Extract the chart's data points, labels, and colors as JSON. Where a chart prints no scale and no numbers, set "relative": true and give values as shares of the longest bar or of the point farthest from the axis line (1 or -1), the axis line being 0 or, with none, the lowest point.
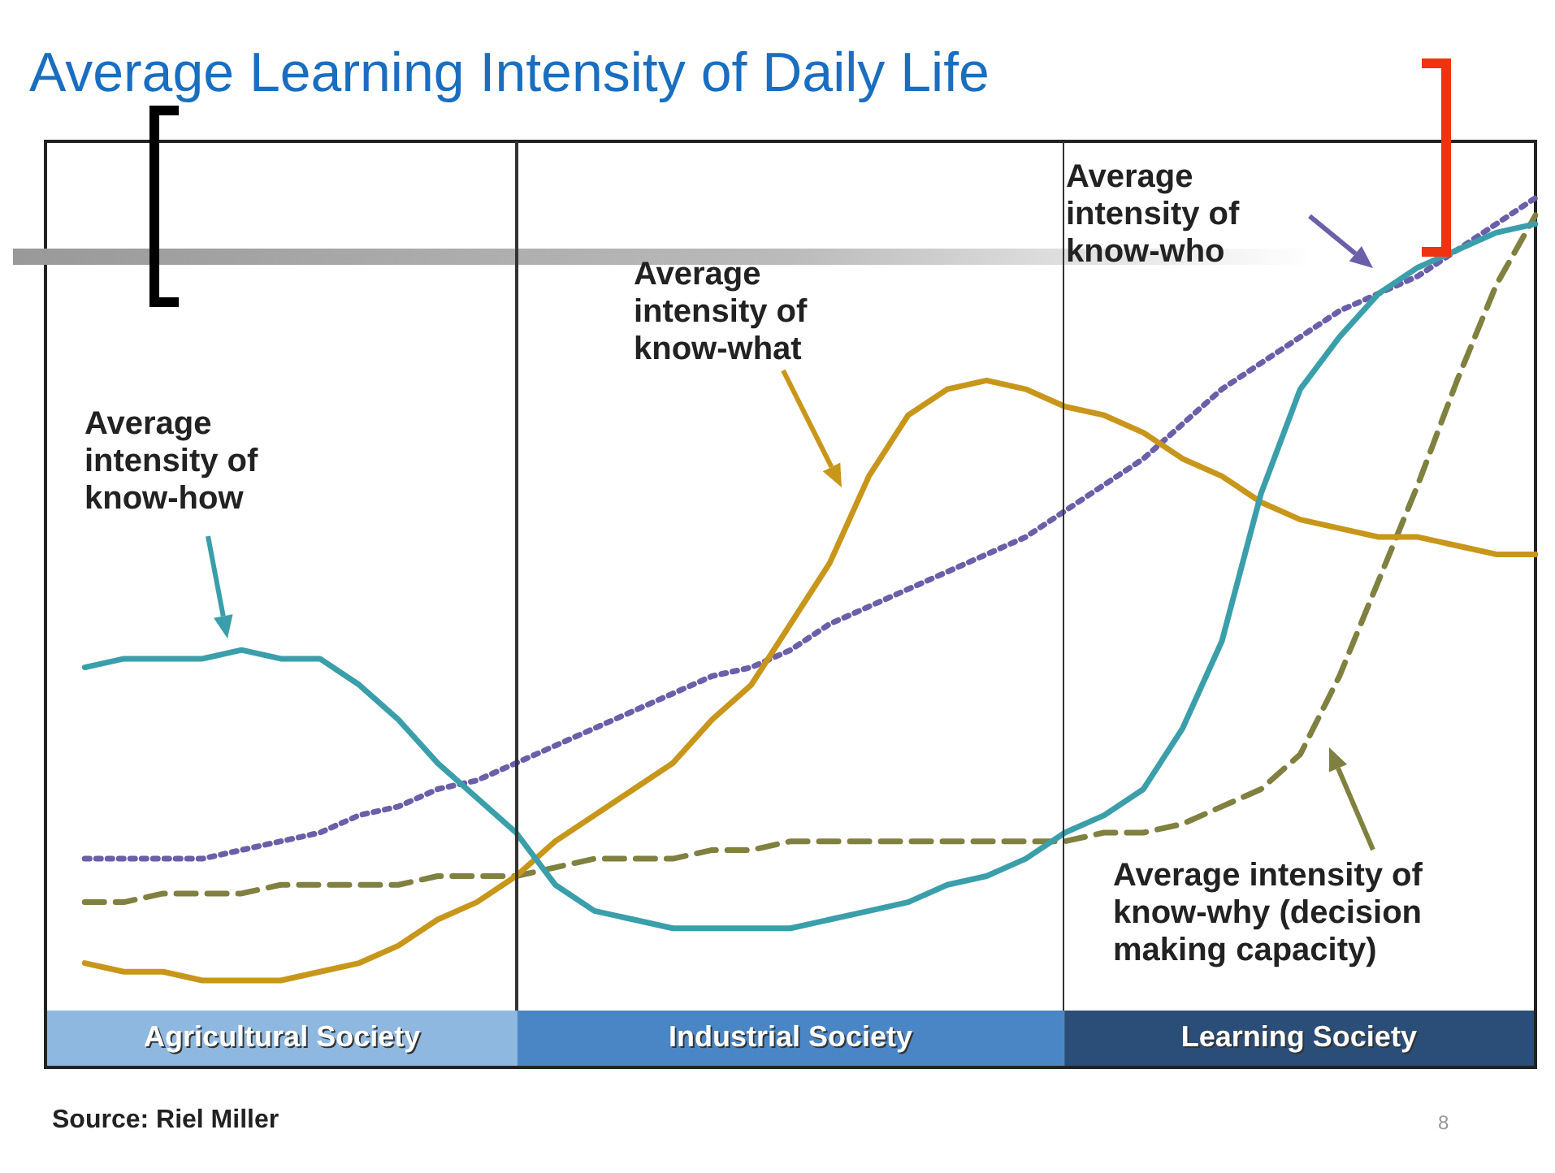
{
  "chart_data": [
    {
      "type": "line",
      "title": "Average Learning Intensity of Daily Life",
      "relative": true,
      "legend": false,
      "marker": "none",
      "categories": [
        null,
        null,
        null,
        null,
        null,
        null,
        null,
        null,
        null,
        null,
        null,
        null,
        null,
        null,
        null,
        null,
        null,
        null,
        null,
        null,
        null,
        null,
        null,
        null,
        null,
        null,
        null,
        null,
        null,
        null,
        null,
        null,
        null,
        null,
        null,
        null,
        null,
        null,
        null
      ],
      "series": [
        {
          "type": "line",
          "color": "#3a9faa",
          "line_style": "solid",
          "values": [
            null,
            0.46,
            0.47,
            0.47,
            0.47,
            0.48,
            0.47,
            0.47,
            0.44,
            0.4,
            0.35,
            0.31,
            0.27,
            0.21,
            0.18,
            0.17,
            0.16,
            0.16,
            0.16,
            0.16,
            0.17,
            0.18,
            0.19,
            0.21,
            0.22,
            0.24,
            0.27,
            0.29,
            0.32,
            0.39,
            0.49,
            0.66,
            0.78,
            0.84,
            0.89,
            0.92,
            0.94,
            0.96,
            0.97
          ]
        },
        {
          "type": "line",
          "color": "#c8961a",
          "line_style": "solid",
          "values": [
            null,
            0.12,
            0.11,
            0.11,
            0.1,
            0.1,
            0.1,
            0.11,
            0.12,
            0.14,
            0.17,
            0.19,
            0.22,
            0.26,
            0.29,
            0.32,
            0.35,
            0.4,
            0.44,
            0.51,
            0.58,
            0.68,
            0.75,
            0.78,
            0.79,
            0.78,
            0.76,
            0.75,
            0.73,
            0.7,
            0.68,
            0.65,
            0.63,
            0.62,
            0.61,
            0.61,
            0.6,
            0.59,
            0.59
          ]
        },
        {
          "type": "line",
          "color": "#6a5fa8",
          "line_style": "dotted",
          "values": [
            null,
            0.24,
            0.24,
            0.24,
            0.24,
            0.25,
            0.26,
            0.27,
            0.29,
            0.3,
            0.32,
            0.33,
            0.35,
            0.37,
            0.39,
            0.41,
            0.43,
            0.45,
            0.46,
            0.48,
            0.51,
            0.53,
            0.55,
            0.57,
            0.59,
            0.61,
            0.64,
            0.67,
            0.7,
            0.74,
            0.78,
            0.81,
            0.84,
            0.87,
            0.89,
            0.91,
            0.94,
            0.97,
            1.0
          ]
        },
        {
          "type": "line",
          "color": "#808040",
          "line_style": "dashed",
          "values": [
            null,
            0.19,
            0.19,
            0.2,
            0.2,
            0.2,
            0.21,
            0.21,
            0.21,
            0.21,
            0.22,
            0.22,
            0.22,
            0.23,
            0.24,
            0.24,
            0.24,
            0.25,
            0.25,
            0.26,
            0.26,
            0.26,
            0.26,
            0.26,
            0.26,
            0.26,
            0.26,
            0.27,
            0.27,
            0.28,
            0.3,
            0.32,
            0.36,
            0.45,
            0.56,
            0.67,
            0.79,
            0.9,
            0.98
          ]
        }
      ],
      "annotations": [
        "Average intensity of know-how",
        "Average intensity of know-what",
        "Average intensity of know-who",
        "Average intensity of know-why (decision making capacity)",
        "Source: Riel Miller",
        "8"
      ]
    },
    {
      "type": "bar",
      "orientation": "horizontal",
      "stacked": true,
      "relative": true,
      "legend": false,
      "categories": [
        null
      ],
      "series": [
        {
          "name": "Agricultural Society",
          "color": "#8fb8e0",
          "values": [
            0.316
          ]
        },
        {
          "name": "Industrial Society",
          "color": "#4a86c5",
          "values": [
            0.368
          ]
        },
        {
          "name": "Learning Society",
          "color": "#2a4e78",
          "values": [
            0.316
          ]
        }
      ]
    }
  ]
}
